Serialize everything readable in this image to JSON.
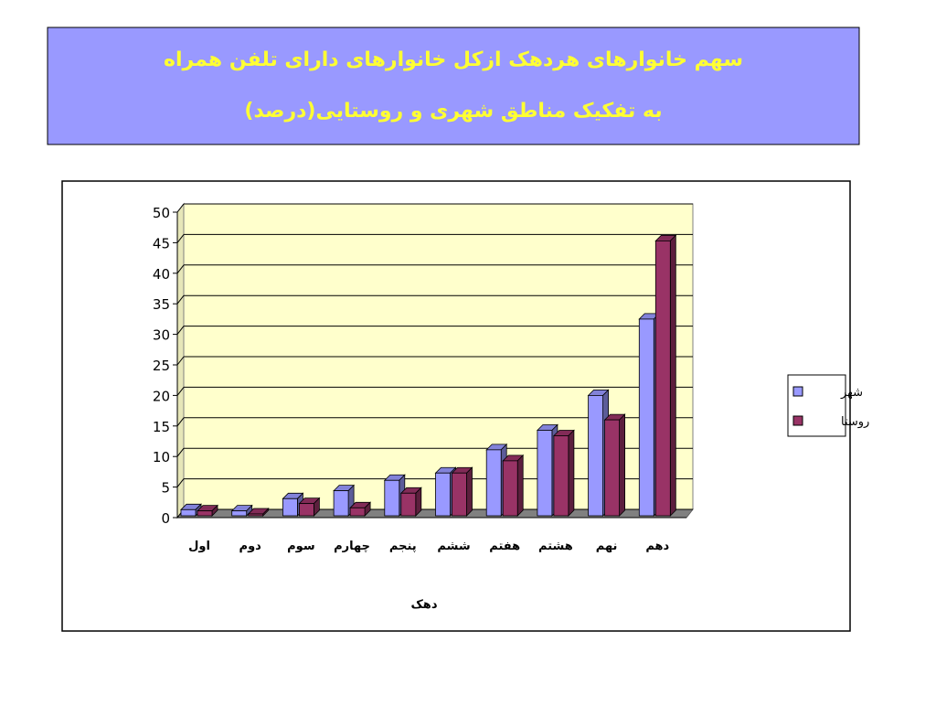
{
  "chart_data": {
    "type": "bar3d",
    "title": "سهم خانوارهای هردهک ازکل خانوارهای دارای تلفن همراه",
    "subtitle": "به تفکیک مناطق شهری و روستایی(درصد)",
    "x_label": "دهک",
    "categories": [
      "اول",
      "دوم",
      "سوم",
      "چهارم",
      "پنجم",
      "ششم",
      "هفتم",
      "هشتم",
      "نهم",
      "دهم"
    ],
    "series": [
      {
        "name": "شهر",
        "color": "#9999ff",
        "values": [
          1.3,
          1.1,
          3.1,
          4.4,
          6.1,
          7.3,
          11.1,
          14.3,
          20.0,
          32.5
        ]
      },
      {
        "name": "روستا",
        "color": "#993366",
        "values": [
          1.1,
          0.6,
          2.3,
          1.6,
          4.0,
          7.3,
          9.3,
          13.4,
          16.0,
          45.3
        ]
      }
    ],
    "ylim": [
      0,
      50
    ],
    "yticks": [
      0,
      5,
      10,
      15,
      20,
      25,
      30,
      35,
      40,
      45,
      50
    ],
    "grid": true,
    "legend": "right"
  }
}
